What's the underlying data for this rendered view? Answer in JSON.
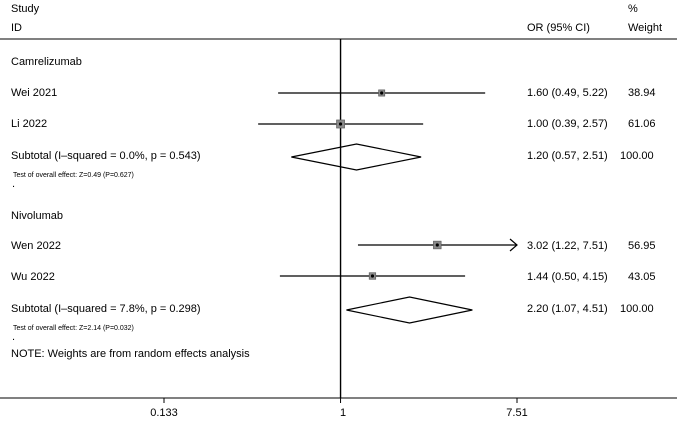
{
  "chart_data": {
    "type": "forest",
    "header": {
      "study_line1": "Study",
      "study_line2": "ID",
      "or_label": "OR (95% CI)",
      "weight_line1": "%",
      "weight_line2": "Weight"
    },
    "x_scale": "log",
    "xlim": [
      0.133,
      7.51
    ],
    "x_ticks": [
      "0.133",
      "1",
      "7.51"
    ],
    "null_line": 1,
    "groups": [
      {
        "name": "Camrelizumab",
        "studies": [
          {
            "label": "Wei 2021",
            "or": 1.6,
            "lo": 0.49,
            "hi": 5.22,
            "text": "1.60 (0.49, 5.22)",
            "weight": "38.94"
          },
          {
            "label": "Li 2022",
            "or": 1.0,
            "lo": 0.39,
            "hi": 2.57,
            "text": "1.00 (0.39, 2.57)",
            "weight": "61.06"
          }
        ],
        "subtotal": {
          "label": "Subtotal  (I–squared = 0.0%, p = 0.543)",
          "or": 1.2,
          "lo": 0.57,
          "hi": 2.51,
          "text": "1.20 (0.57, 2.51)",
          "weight": "100.00"
        },
        "test": "Test of overall effect: Z=0.49 (P=0.627)"
      },
      {
        "name": "Nivolumab",
        "studies": [
          {
            "label": "Wen 2022",
            "or": 3.02,
            "lo": 1.22,
            "hi": 7.51,
            "text": "3.02 (1.22, 7.51)",
            "weight": "56.95",
            "arrow": true
          },
          {
            "label": "Wu 2022",
            "or": 1.44,
            "lo": 0.5,
            "hi": 4.15,
            "text": "1.44 (0.50, 4.15)",
            "weight": "43.05"
          }
        ],
        "subtotal": {
          "label": "Subtotal  (I–squared = 7.8%, p = 0.298)",
          "or": 2.2,
          "lo": 1.07,
          "hi": 4.51,
          "text": "2.20 (1.07, 4.51)",
          "weight": "100.00"
        },
        "test": "Test of overall effect: Z=2.14 (P=0.032)"
      }
    ],
    "dot_marks": [
      ".",
      "."
    ],
    "note": "NOTE: Weights are from random effects analysis"
  }
}
